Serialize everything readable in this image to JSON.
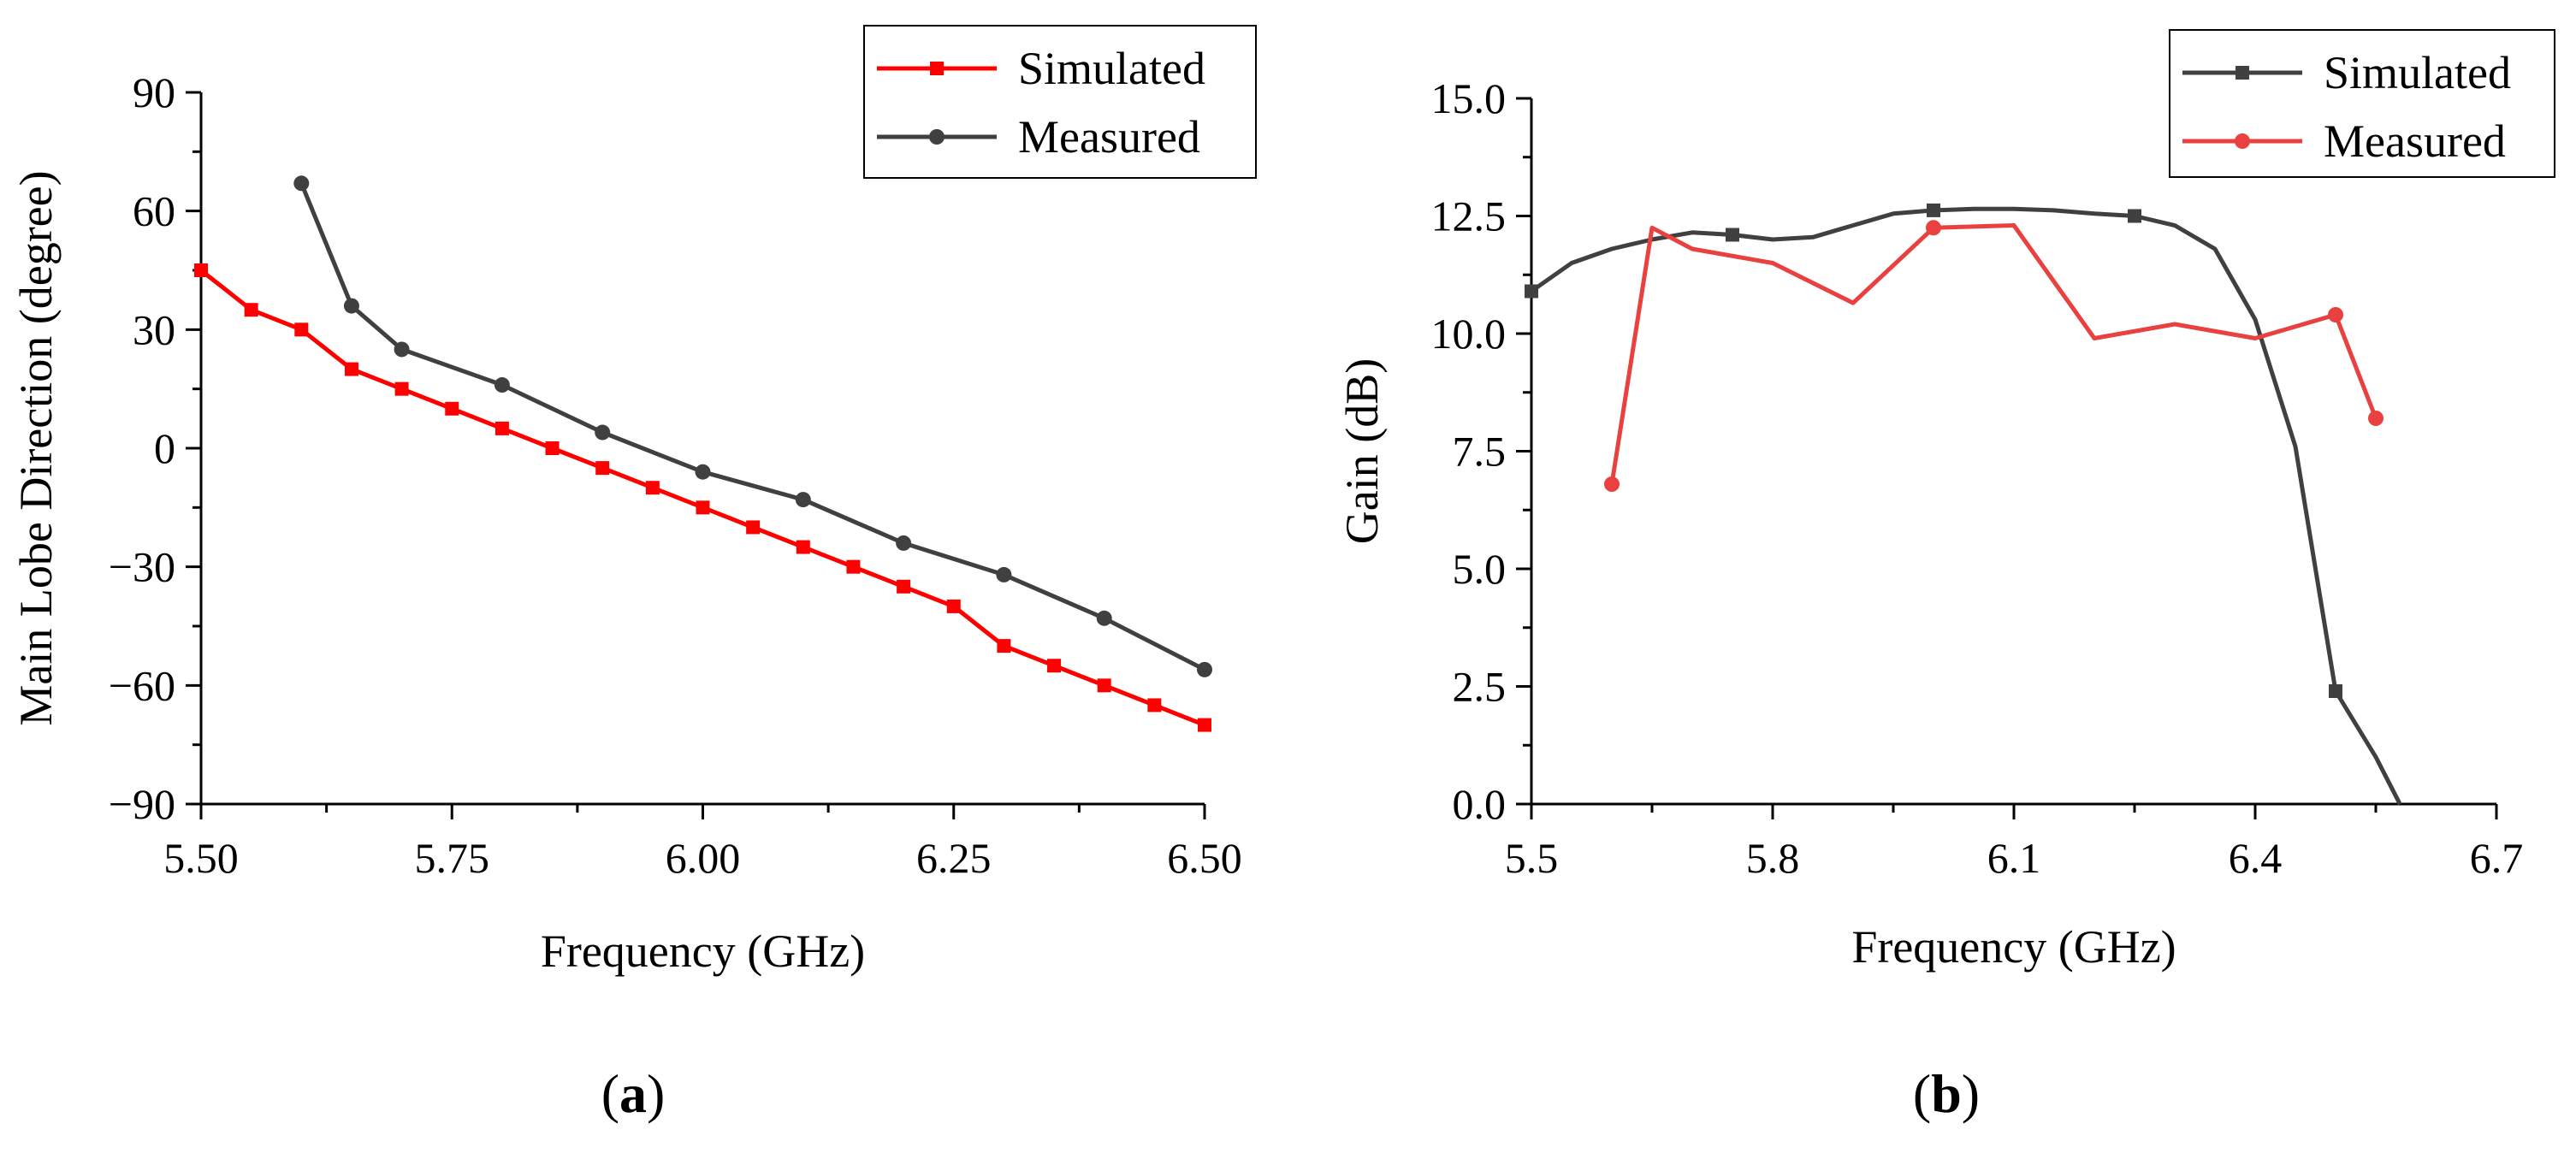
{
  "panels": [
    {
      "label_open": "(",
      "label_letter": "a",
      "label_close": ")"
    },
    {
      "label_open": "(",
      "label_letter": "b",
      "label_close": ")"
    }
  ],
  "chart_data": [
    {
      "type": "line",
      "xlabel": "Frequency (GHz)",
      "ylabel": "Main Lobe Direction (degree)",
      "xlim": [
        5.5,
        6.5
      ],
      "ylim": [
        -90,
        90
      ],
      "xticks": [
        5.5,
        5.75,
        6.0,
        6.25,
        6.5
      ],
      "xtick_labels": [
        "5.50",
        "5.75",
        "6.00",
        "6.25",
        "6.50"
      ],
      "yticks": [
        -90,
        -60,
        -30,
        0,
        30,
        60,
        90
      ],
      "ytick_labels": [
        "−90",
        "−60",
        "−30",
        "0",
        "30",
        "60",
        "90"
      ],
      "grid": false,
      "legend_position": "top-right",
      "series": [
        {
          "name": "Simulated",
          "color": "#ff0000",
          "marker": "square",
          "x": [
            5.5,
            5.55,
            5.6,
            5.65,
            5.7,
            5.75,
            5.8,
            5.85,
            5.9,
            5.95,
            6.0,
            6.05,
            6.1,
            6.15,
            6.2,
            6.25,
            6.3,
            6.35,
            6.4,
            6.45,
            6.5
          ],
          "y": [
            45,
            35,
            30,
            20,
            15,
            10,
            5,
            0,
            -5,
            -10,
            -15,
            -20,
            -25,
            -30,
            -35,
            -40,
            -50,
            -55,
            -60,
            -65,
            -70
          ]
        },
        {
          "name": "Measured",
          "color": "#404040",
          "marker": "circle",
          "x": [
            5.6,
            5.65,
            5.7,
            5.8,
            5.9,
            6.0,
            6.1,
            6.2,
            6.3,
            6.4,
            6.5
          ],
          "y": [
            67,
            36,
            25,
            16,
            4,
            -6,
            -13,
            -24,
            -32,
            -43,
            -56
          ]
        }
      ]
    },
    {
      "type": "line",
      "xlabel": "Frequency (GHz)",
      "ylabel": "Gain (dB)",
      "xlim": [
        5.5,
        6.7
      ],
      "ylim": [
        0,
        15
      ],
      "xticks": [
        5.5,
        5.8,
        6.1,
        6.4,
        6.7
      ],
      "xtick_labels": [
        "5.5",
        "5.8",
        "6.1",
        "6.4",
        "6.7"
      ],
      "yticks": [
        0,
        2.5,
        5,
        7.5,
        10,
        12.5,
        15
      ],
      "ytick_labels": [
        "0.0",
        "2.5",
        "5.0",
        "7.5",
        "10.0",
        "12.5",
        "15.0"
      ],
      "grid": false,
      "legend_position": "top-right",
      "series": [
        {
          "name": "Simulated",
          "color": "#404040",
          "marker": "square",
          "marker_x": [
            5.5,
            5.75,
            6.0,
            6.25,
            6.5
          ],
          "x": [
            5.5,
            5.55,
            5.6,
            5.65,
            5.7,
            5.75,
            5.8,
            5.85,
            5.9,
            5.95,
            6.0,
            6.05,
            6.1,
            6.15,
            6.2,
            6.25,
            6.3,
            6.35,
            6.4,
            6.45,
            6.5,
            6.55,
            6.58
          ],
          "y": [
            10.9,
            11.5,
            11.8,
            12.0,
            12.15,
            12.1,
            12.0,
            12.05,
            12.3,
            12.55,
            12.62,
            12.65,
            12.65,
            12.62,
            12.55,
            12.5,
            12.3,
            11.8,
            10.3,
            7.6,
            2.4,
            1.0,
            0.0
          ]
        },
        {
          "name": "Measured",
          "color": "#e8413f",
          "marker": "circle",
          "marker_x": [
            5.6,
            6.0,
            6.5,
            6.55
          ],
          "x": [
            5.6,
            5.65,
            5.7,
            5.8,
            5.9,
            6.0,
            6.1,
            6.2,
            6.3,
            6.4,
            6.5,
            6.55
          ],
          "y": [
            6.8,
            12.25,
            11.8,
            11.5,
            10.65,
            12.25,
            12.3,
            9.9,
            10.2,
            9.9,
            10.4,
            8.2
          ]
        }
      ]
    }
  ]
}
